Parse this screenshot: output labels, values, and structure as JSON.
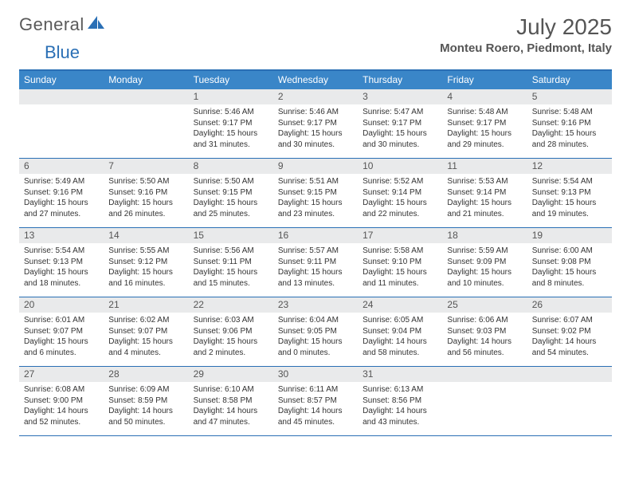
{
  "brand": {
    "part1": "General",
    "part2": "Blue"
  },
  "title": "July 2025",
  "location": "Monteu Roero, Piedmont, Italy",
  "colors": {
    "header_bg": "#3a86c8",
    "accent": "#2a6fb5",
    "daynum_bg": "#e9eaeb",
    "text": "#333333",
    "title_text": "#555555"
  },
  "day_names": [
    "Sunday",
    "Monday",
    "Tuesday",
    "Wednesday",
    "Thursday",
    "Friday",
    "Saturday"
  ],
  "weeks": [
    [
      {
        "n": "",
        "lines": []
      },
      {
        "n": "",
        "lines": []
      },
      {
        "n": "1",
        "lines": [
          "Sunrise: 5:46 AM",
          "Sunset: 9:17 PM",
          "Daylight: 15 hours and 31 minutes."
        ]
      },
      {
        "n": "2",
        "lines": [
          "Sunrise: 5:46 AM",
          "Sunset: 9:17 PM",
          "Daylight: 15 hours and 30 minutes."
        ]
      },
      {
        "n": "3",
        "lines": [
          "Sunrise: 5:47 AM",
          "Sunset: 9:17 PM",
          "Daylight: 15 hours and 30 minutes."
        ]
      },
      {
        "n": "4",
        "lines": [
          "Sunrise: 5:48 AM",
          "Sunset: 9:17 PM",
          "Daylight: 15 hours and 29 minutes."
        ]
      },
      {
        "n": "5",
        "lines": [
          "Sunrise: 5:48 AM",
          "Sunset: 9:16 PM",
          "Daylight: 15 hours and 28 minutes."
        ]
      }
    ],
    [
      {
        "n": "6",
        "lines": [
          "Sunrise: 5:49 AM",
          "Sunset: 9:16 PM",
          "Daylight: 15 hours and 27 minutes."
        ]
      },
      {
        "n": "7",
        "lines": [
          "Sunrise: 5:50 AM",
          "Sunset: 9:16 PM",
          "Daylight: 15 hours and 26 minutes."
        ]
      },
      {
        "n": "8",
        "lines": [
          "Sunrise: 5:50 AM",
          "Sunset: 9:15 PM",
          "Daylight: 15 hours and 25 minutes."
        ]
      },
      {
        "n": "9",
        "lines": [
          "Sunrise: 5:51 AM",
          "Sunset: 9:15 PM",
          "Daylight: 15 hours and 23 minutes."
        ]
      },
      {
        "n": "10",
        "lines": [
          "Sunrise: 5:52 AM",
          "Sunset: 9:14 PM",
          "Daylight: 15 hours and 22 minutes."
        ]
      },
      {
        "n": "11",
        "lines": [
          "Sunrise: 5:53 AM",
          "Sunset: 9:14 PM",
          "Daylight: 15 hours and 21 minutes."
        ]
      },
      {
        "n": "12",
        "lines": [
          "Sunrise: 5:54 AM",
          "Sunset: 9:13 PM",
          "Daylight: 15 hours and 19 minutes."
        ]
      }
    ],
    [
      {
        "n": "13",
        "lines": [
          "Sunrise: 5:54 AM",
          "Sunset: 9:13 PM",
          "Daylight: 15 hours and 18 minutes."
        ]
      },
      {
        "n": "14",
        "lines": [
          "Sunrise: 5:55 AM",
          "Sunset: 9:12 PM",
          "Daylight: 15 hours and 16 minutes."
        ]
      },
      {
        "n": "15",
        "lines": [
          "Sunrise: 5:56 AM",
          "Sunset: 9:11 PM",
          "Daylight: 15 hours and 15 minutes."
        ]
      },
      {
        "n": "16",
        "lines": [
          "Sunrise: 5:57 AM",
          "Sunset: 9:11 PM",
          "Daylight: 15 hours and 13 minutes."
        ]
      },
      {
        "n": "17",
        "lines": [
          "Sunrise: 5:58 AM",
          "Sunset: 9:10 PM",
          "Daylight: 15 hours and 11 minutes."
        ]
      },
      {
        "n": "18",
        "lines": [
          "Sunrise: 5:59 AM",
          "Sunset: 9:09 PM",
          "Daylight: 15 hours and 10 minutes."
        ]
      },
      {
        "n": "19",
        "lines": [
          "Sunrise: 6:00 AM",
          "Sunset: 9:08 PM",
          "Daylight: 15 hours and 8 minutes."
        ]
      }
    ],
    [
      {
        "n": "20",
        "lines": [
          "Sunrise: 6:01 AM",
          "Sunset: 9:07 PM",
          "Daylight: 15 hours and 6 minutes."
        ]
      },
      {
        "n": "21",
        "lines": [
          "Sunrise: 6:02 AM",
          "Sunset: 9:07 PM",
          "Daylight: 15 hours and 4 minutes."
        ]
      },
      {
        "n": "22",
        "lines": [
          "Sunrise: 6:03 AM",
          "Sunset: 9:06 PM",
          "Daylight: 15 hours and 2 minutes."
        ]
      },
      {
        "n": "23",
        "lines": [
          "Sunrise: 6:04 AM",
          "Sunset: 9:05 PM",
          "Daylight: 15 hours and 0 minutes."
        ]
      },
      {
        "n": "24",
        "lines": [
          "Sunrise: 6:05 AM",
          "Sunset: 9:04 PM",
          "Daylight: 14 hours and 58 minutes."
        ]
      },
      {
        "n": "25",
        "lines": [
          "Sunrise: 6:06 AM",
          "Sunset: 9:03 PM",
          "Daylight: 14 hours and 56 minutes."
        ]
      },
      {
        "n": "26",
        "lines": [
          "Sunrise: 6:07 AM",
          "Sunset: 9:02 PM",
          "Daylight: 14 hours and 54 minutes."
        ]
      }
    ],
    [
      {
        "n": "27",
        "lines": [
          "Sunrise: 6:08 AM",
          "Sunset: 9:00 PM",
          "Daylight: 14 hours and 52 minutes."
        ]
      },
      {
        "n": "28",
        "lines": [
          "Sunrise: 6:09 AM",
          "Sunset: 8:59 PM",
          "Daylight: 14 hours and 50 minutes."
        ]
      },
      {
        "n": "29",
        "lines": [
          "Sunrise: 6:10 AM",
          "Sunset: 8:58 PM",
          "Daylight: 14 hours and 47 minutes."
        ]
      },
      {
        "n": "30",
        "lines": [
          "Sunrise: 6:11 AM",
          "Sunset: 8:57 PM",
          "Daylight: 14 hours and 45 minutes."
        ]
      },
      {
        "n": "31",
        "lines": [
          "Sunrise: 6:13 AM",
          "Sunset: 8:56 PM",
          "Daylight: 14 hours and 43 minutes."
        ]
      },
      {
        "n": "",
        "lines": []
      },
      {
        "n": "",
        "lines": []
      }
    ]
  ]
}
